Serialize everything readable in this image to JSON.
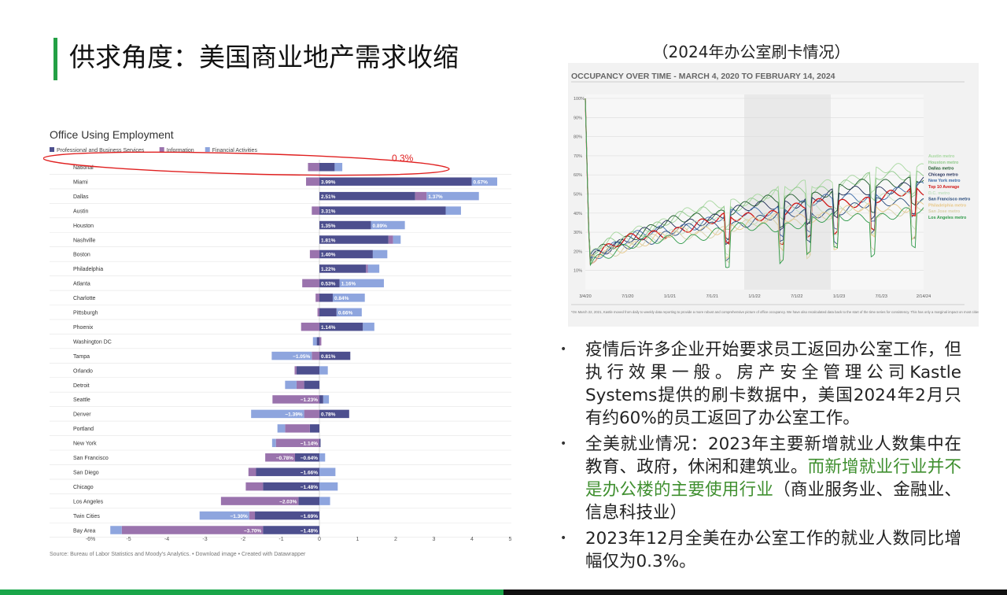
{
  "slide": {
    "title": "供求角度：美国商业地产需求收缩",
    "right_caption": "（2024年办公室刷卡情况）"
  },
  "colors": {
    "professional": "#4d4f8e",
    "information": "#9a73ad",
    "financial": "#8ea5de",
    "accent_green": "#23a045",
    "highlight_red": "#e02020"
  },
  "bullets": [
    {
      "text": "疫情后许多企业开始要求员工返回办公室工作，但执行效果一般。房产安全管理公司Kastle Systems提供的刷卡数据中，美国2024年2月只有约60%的员工返回了办公室工作。",
      "highlight": "",
      "tail": ""
    },
    {
      "text": "全美就业情况：2023年主要新增就业人数集中在教育、政府，休闲和建筑业。",
      "highlight": "而新增就业行业并不是办公楼的主要使用行业",
      "tail": "（商业服务业、金融业、信息科技业）"
    },
    {
      "text": "2023年12月全美在办公室工作的就业人数同比增幅仅为0.3%。",
      "highlight": "",
      "tail": ""
    }
  ],
  "chart_data": [
    {
      "type": "bar",
      "orientation": "horizontal",
      "stacked": true,
      "title": "Office Using Employment",
      "legend": [
        "Professional and Business Services",
        "Information",
        "Financial Activities"
      ],
      "legend_position": "top-left",
      "x_ticks": [
        "-6%",
        "-5",
        "-4",
        "-3",
        "-2",
        "-1",
        "0",
        "1",
        "2",
        "3",
        "4",
        "5"
      ],
      "xlim": [
        -6,
        5
      ],
      "annotation": "0.3%",
      "source": "Source: Bureau of Labor Statistics and Moody's Analytics. • Download image • Created with Datawrapper",
      "series_names": [
        "Professional and Business Services",
        "Information",
        "Financial Activities"
      ],
      "rows": [
        {
          "city": "National",
          "prof": 0.4,
          "info": -0.3,
          "fin": 0.2,
          "labels": [
            "",
            "",
            ""
          ]
        },
        {
          "city": "Miami",
          "prof": 3.99,
          "info": -0.35,
          "fin": 0.67,
          "labels": [
            "3.99%",
            "",
            "0.67%"
          ]
        },
        {
          "city": "Dallas",
          "prof": 2.51,
          "info": 0.3,
          "fin": 1.37,
          "labels": [
            "2.51%",
            "",
            "1.37%"
          ]
        },
        {
          "city": "Austin",
          "prof": 3.31,
          "info": -0.2,
          "fin": 0.4,
          "labels": [
            "3.31%",
            "",
            ""
          ]
        },
        {
          "city": "Houston",
          "prof": 1.35,
          "info": 0.0,
          "fin": 0.89,
          "labels": [
            "1.35%",
            "",
            "0.89%"
          ]
        },
        {
          "city": "Nashville",
          "prof": 1.81,
          "info": 0.12,
          "fin": 0.2,
          "labels": [
            "1.81%",
            "",
            ""
          ]
        },
        {
          "city": "Boston",
          "prof": 1.4,
          "info": -0.25,
          "fin": 0.38,
          "labels": [
            "1.40%",
            "",
            ""
          ]
        },
        {
          "city": "Philadelphia",
          "prof": 1.22,
          "info": 0.05,
          "fin": 0.3,
          "labels": [
            "1.22%",
            "",
            ""
          ]
        },
        {
          "city": "Atlanta",
          "prof": 0.53,
          "info": -0.45,
          "fin": 1.16,
          "labels": [
            "0.53%",
            "",
            "1.16%"
          ]
        },
        {
          "city": "Charlotte",
          "prof": 0.35,
          "info": -0.1,
          "fin": 0.84,
          "labels": [
            "",
            "",
            "0.84%"
          ]
        },
        {
          "city": "Pittsburgh",
          "prof": 0.45,
          "info": -0.05,
          "fin": 0.66,
          "labels": [
            "",
            "",
            "0.66%"
          ]
        },
        {
          "city": "Phoenix",
          "prof": 1.14,
          "info": -0.48,
          "fin": 0.3,
          "labels": [
            "1.14%",
            "",
            ""
          ]
        },
        {
          "city": "Washington DC",
          "prof": -0.07,
          "info": 0.05,
          "fin": -0.1,
          "labels": [
            "",
            "",
            ""
          ]
        },
        {
          "city": "Tampa",
          "prof": 0.81,
          "info": -0.2,
          "fin": -1.05,
          "labels": [
            "0.81%",
            "",
            "−1.05%"
          ]
        },
        {
          "city": "Orlando",
          "prof": -0.6,
          "info": -0.05,
          "fin": 0.22,
          "labels": [
            "",
            "",
            ""
          ]
        },
        {
          "city": "Detroit",
          "prof": -0.4,
          "info": -0.2,
          "fin": -0.3,
          "labels": [
            "",
            "",
            ""
          ]
        },
        {
          "city": "Seattle",
          "prof": 0.1,
          "info": -1.23,
          "fin": 0.15,
          "labels": [
            "",
            "−1.23%",
            ""
          ]
        },
        {
          "city": "Denver",
          "prof": 0.78,
          "info": -0.4,
          "fin": -1.39,
          "labels": [
            "0.78%",
            "",
            "−1.39%"
          ]
        },
        {
          "city": "Portland",
          "prof": -0.25,
          "info": -0.65,
          "fin": -0.2,
          "labels": [
            "",
            "",
            ""
          ]
        },
        {
          "city": "New York",
          "prof": 0.03,
          "info": -1.14,
          "fin": -0.1,
          "labels": [
            "",
            "−1.14%",
            ""
          ]
        },
        {
          "city": "San Francisco",
          "prof": -0.64,
          "info": -0.78,
          "fin": 0.15,
          "labels": [
            "−0.64%",
            "−0.78%",
            ""
          ]
        },
        {
          "city": "San Diego",
          "prof": -1.66,
          "info": -0.2,
          "fin": 0.42,
          "labels": [
            "−1.66%",
            "",
            ""
          ]
        },
        {
          "city": "Chicago",
          "prof": -1.48,
          "info": -0.45,
          "fin": 0.48,
          "labels": [
            "−1.48%",
            "",
            ""
          ]
        },
        {
          "city": "Los Angeles",
          "prof": -0.55,
          "info": -2.03,
          "fin": 0.28,
          "labels": [
            "",
            "−2.03%",
            ""
          ]
        },
        {
          "city": "Twin Cities",
          "prof": -1.69,
          "info": -0.15,
          "fin": -1.3,
          "labels": [
            "−1.69%",
            "",
            "−1.30%"
          ]
        },
        {
          "city": "Bay Area",
          "prof": -1.48,
          "info": -3.7,
          "fin": -0.3,
          "labels": [
            "−1.48%",
            "−3.70%",
            ""
          ]
        }
      ]
    },
    {
      "type": "line",
      "title": "OCCUPANCY OVER TIME - MARCH 4, 2020 TO FEBRUARY 14, 2024",
      "y_ticks": [
        "100%",
        "90%",
        "80%",
        "70%",
        "60%",
        "50%",
        "40%",
        "30%",
        "20%",
        "10%"
      ],
      "x_ticks": [
        "3/4/20",
        "7/1/20",
        "1/1/21",
        "7/1/21",
        "1/1/22",
        "7/1/22",
        "1/1/23",
        "7/1/23",
        "2/14/24"
      ],
      "ylim": [
        0,
        100
      ],
      "footnote": "*On March 22, 2021, Kastle moved from daily to weekly data reporting to provide a more robust and comprehensive picture of office occupancy. We have also recalculated data back to the start of the time series for consistency. This has only a marginal impact on most cities and the national average.",
      "series": [
        {
          "name": "Austin metro",
          "color": "#a8d8a0",
          "end": 65
        },
        {
          "name": "Houston metro",
          "color": "#8fc98a",
          "end": 62
        },
        {
          "name": "Dallas metro",
          "color": "#1e5a2b",
          "end": 59
        },
        {
          "name": "Chicago metro",
          "color": "#1e2a55",
          "end": 56
        },
        {
          "name": "New York metro",
          "color": "#3a6aa8",
          "end": 53
        },
        {
          "name": "Top 10 Average",
          "color": "#d01818",
          "end": 51
        },
        {
          "name": "D.C. metro",
          "color": "#bfe0c0",
          "end": 49
        },
        {
          "name": "San Francisco metro",
          "color": "#25487a",
          "end": 47
        },
        {
          "name": "Philadelphia metro",
          "color": "#e8c888",
          "end": 45
        },
        {
          "name": "San Jose metro",
          "color": "#d8d0a8",
          "end": 43
        },
        {
          "name": "Los Angeles metro",
          "color": "#2f9a4a",
          "end": 41
        }
      ]
    }
  ]
}
